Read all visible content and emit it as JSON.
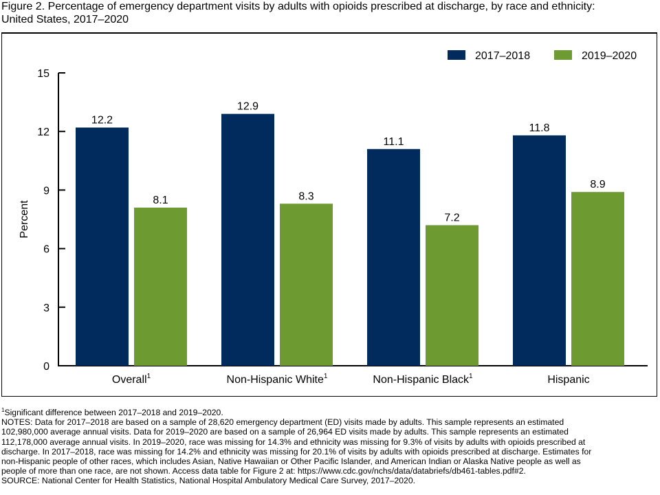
{
  "title": "Figure 2. Percentage of emergency department visits by adults with opioids prescribed at discharge, by race and ethnicity: United States, 2017–2020",
  "title_lines": [
    "Figure 2. Percentage of emergency department visits by adults with opioids prescribed at discharge, by race and ethnicity:",
    "United States, 2017–2020"
  ],
  "chart_data": {
    "type": "bar",
    "title": "Percentage of emergency department visits by adults with opioids prescribed at discharge, by race and ethnicity: United States, 2017–2020",
    "xlabel": "",
    "ylabel": "Percent",
    "ylim": [
      0,
      15
    ],
    "yticks": [
      0,
      3,
      6,
      9,
      12,
      15
    ],
    "grid": false,
    "legend_position": "top-right",
    "categories": [
      "Overall",
      "Non-Hispanic White",
      "Non-Hispanic Black",
      "Hispanic"
    ],
    "category_footnotes": [
      "1",
      "1",
      "1",
      ""
    ],
    "series": [
      {
        "name": "2017–2018",
        "color": "#002b5c",
        "values": [
          12.2,
          12.9,
          11.1,
          11.8
        ]
      },
      {
        "name": "2019–2020",
        "color": "#6d9b32",
        "values": [
          8.1,
          8.3,
          7.2,
          8.9
        ]
      }
    ],
    "data_labels": [
      [
        "12.2",
        "12.9",
        "11.1",
        "11.8"
      ],
      [
        "8.1",
        "8.3",
        "7.2",
        "8.9"
      ]
    ]
  },
  "notes": {
    "footnote_marker": "1",
    "footnote": "Significant difference between 2017–2018 and 2019–2020.",
    "lines": [
      "NOTES: Data for 2017–2018 are based on a sample of 28,620 emergency department (ED) visits made by adults. This sample represents an estimated",
      "102,980,000 average annual visits. Data for 2019–2020 are based on a sample of 26,964 ED visits made by adults. This sample represents an estimated",
      "112,178,000 average annual visits. In 2019–2020, race was missing for 14.3% and ethnicity was missing for 9.3% of visits by adults with opioids prescribed at",
      "discharge. In 2017–2018, race was missing for 14.2% and ethnicity was missing for 20.1% of visits by adults with opioids prescribed at discharge. Estimates for",
      "non-Hispanic people of other races, which includes Asian, Native Hawaiian or Other Pacific Islander, and American Indian or Alaska Native people as well as",
      "people of more than one race, are not shown. Access data table for Figure 2 at: https://www.cdc.gov/nchs/data/databriefs/db461-tables.pdf#2."
    ],
    "source": "SOURCE: National Center for Health Statistics, National Hospital Ambulatory Medical Care Survey, 2017–2020."
  }
}
